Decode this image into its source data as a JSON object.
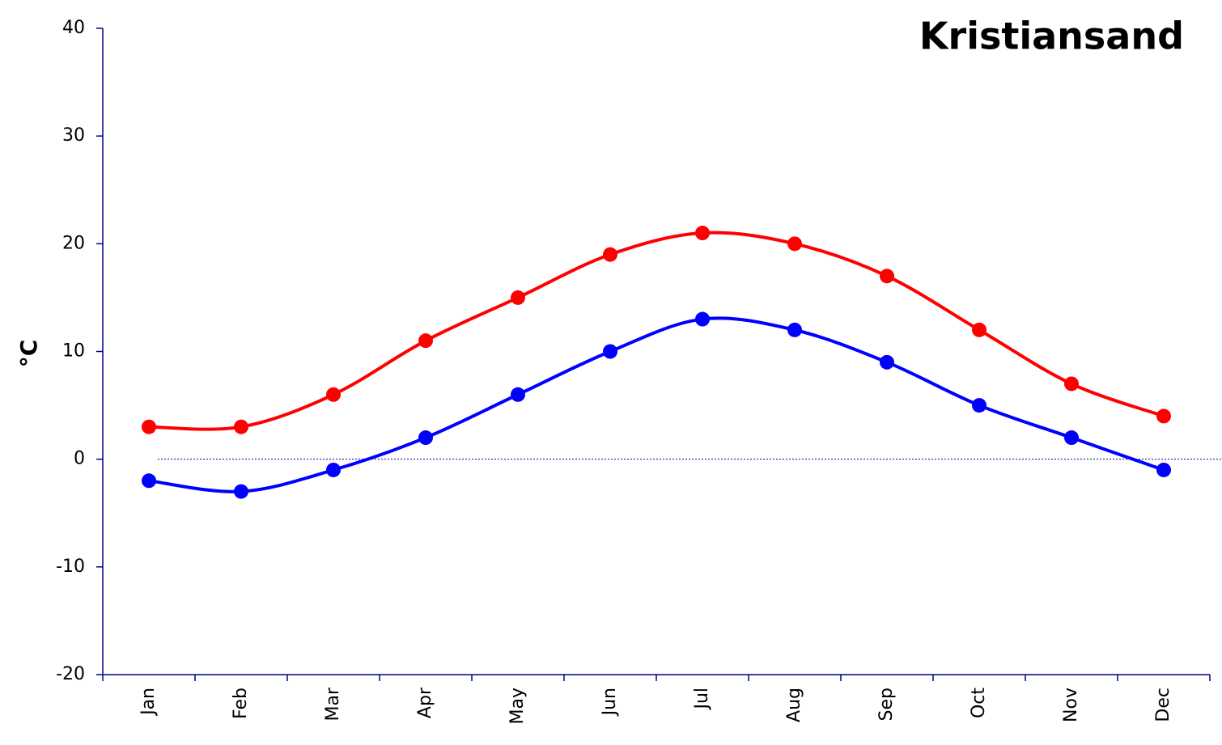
{
  "chart_data": {
    "type": "line",
    "title": "Kristiansand",
    "y_label": "°C",
    "categories": [
      "Jan",
      "Feb",
      "Mar",
      "Apr",
      "May",
      "Jun",
      "Jul",
      "Aug",
      "Sep",
      "Oct",
      "Nov",
      "Dec"
    ],
    "series": [
      {
        "color": "#ff0000",
        "values": [
          3,
          3,
          6,
          11,
          15,
          19,
          21,
          20,
          17,
          12,
          7,
          4
        ]
      },
      {
        "color": "#0000ff",
        "values": [
          -2,
          -3,
          -1,
          2,
          6,
          10,
          13,
          12,
          9,
          5,
          2,
          -1
        ]
      }
    ],
    "ylim": [
      -20,
      40
    ],
    "yticks": [
      -20,
      -10,
      0,
      10,
      20,
      30,
      40
    ],
    "smooth": true,
    "zero_line": true
  }
}
